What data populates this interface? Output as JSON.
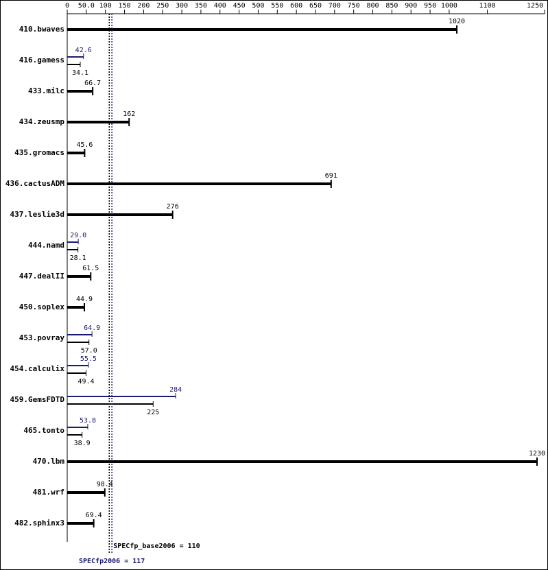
{
  "chart_data": {
    "type": "bar",
    "orientation": "horizontal",
    "categories": [
      "410.bwaves",
      "416.gamess",
      "433.milc",
      "434.zeusmp",
      "435.gromacs",
      "436.cactusADM",
      "437.leslie3d",
      "444.namd",
      "447.dealII",
      "450.soplex",
      "453.povray",
      "454.calculix",
      "459.GemsFDTD",
      "465.tonto",
      "470.lbm",
      "481.wrf",
      "482.sphinx3"
    ],
    "series": [
      {
        "color": "#000000",
        "values": [
          1020,
          34.1,
          66.7,
          162,
          45.6,
          691,
          276,
          28.1,
          61.5,
          44.9,
          57.0,
          49.4,
          225,
          38.9,
          1230,
          98.4,
          69.4
        ],
        "value_labels": [
          "1020",
          "34.1",
          "66.7",
          "162",
          "45.6",
          "691",
          "276",
          "28.1",
          "61.5",
          "44.9",
          "57.0",
          "49.4",
          "225",
          "38.9",
          "1230",
          "98.4",
          "69.4"
        ]
      },
      {
        "color": "#191970",
        "values": [
          null,
          42.6,
          null,
          null,
          null,
          null,
          null,
          29.0,
          null,
          null,
          64.9,
          55.5,
          284,
          53.8,
          null,
          null,
          null
        ],
        "value_labels": [
          null,
          "42.6",
          null,
          null,
          null,
          null,
          null,
          "29.0",
          null,
          null,
          "64.9",
          "55.5",
          "284",
          "53.8",
          null,
          null,
          null
        ]
      }
    ],
    "xlim": [
      0,
      1250
    ],
    "xticks": [
      0,
      {
        "value": 50,
        "label": "50.0"
      },
      100,
      150,
      200,
      250,
      300,
      350,
      400,
      450,
      500,
      550,
      600,
      650,
      700,
      750,
      800,
      850,
      900,
      950,
      1000,
      1100,
      1250
    ],
    "reference_lines": [
      {
        "value": 110,
        "label": "SPECfp_base2006 = 110",
        "color": "#000000"
      },
      {
        "value": 117,
        "label": "SPECfp2006 = 117",
        "color": "#191970"
      }
    ]
  }
}
